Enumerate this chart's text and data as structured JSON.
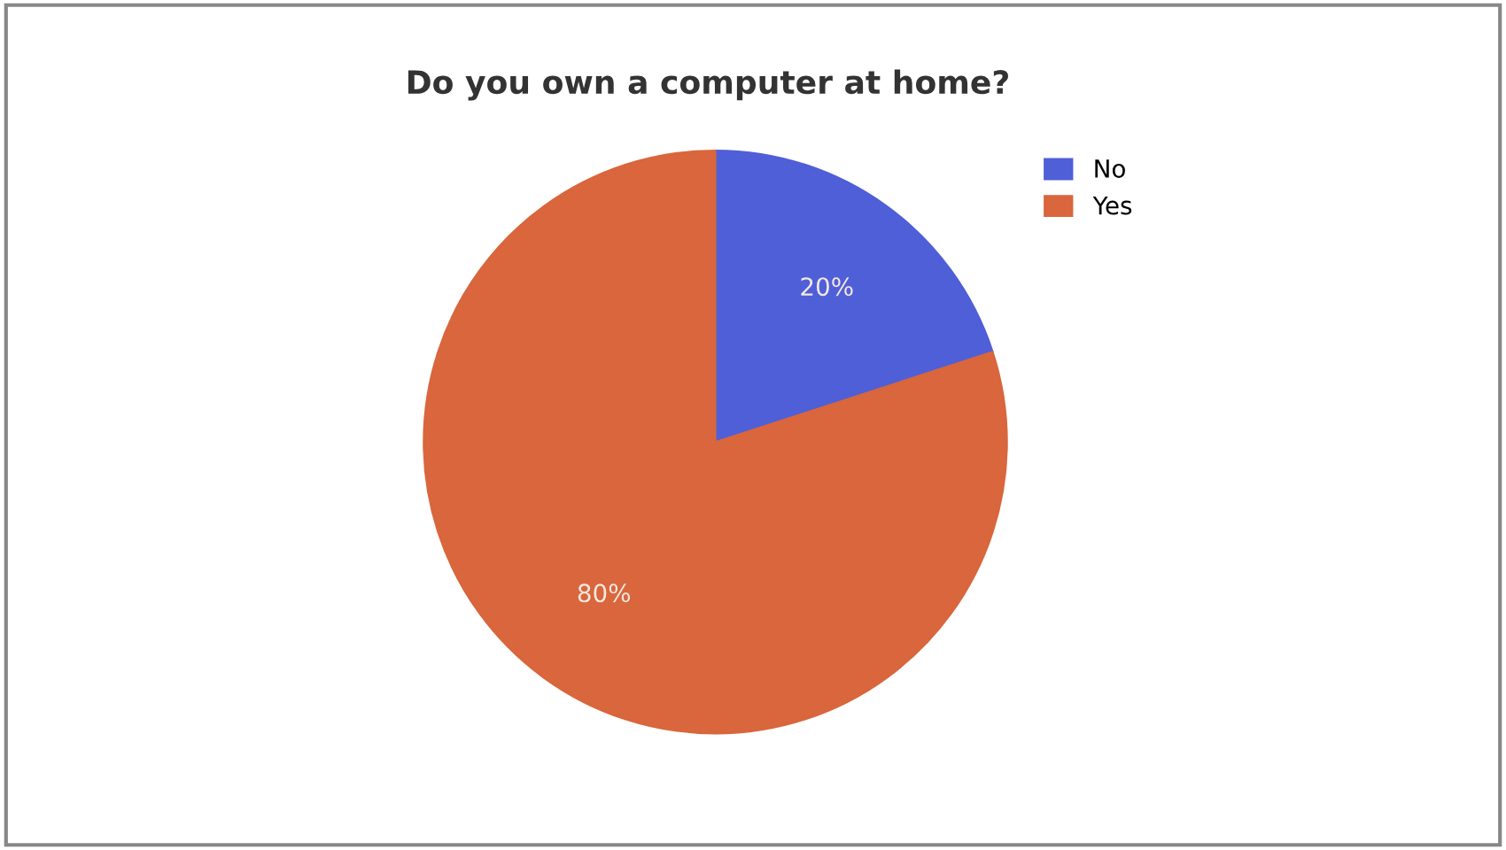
{
  "chart_data": {
    "type": "pie",
    "title": "Do you own a computer at home?",
    "categories": [
      "No",
      "Yes"
    ],
    "values": [
      20,
      80
    ],
    "colors": [
      "#4f5fd8",
      "#d9663c"
    ],
    "value_labels": [
      "20%",
      "80%"
    ],
    "legend": "top right"
  }
}
